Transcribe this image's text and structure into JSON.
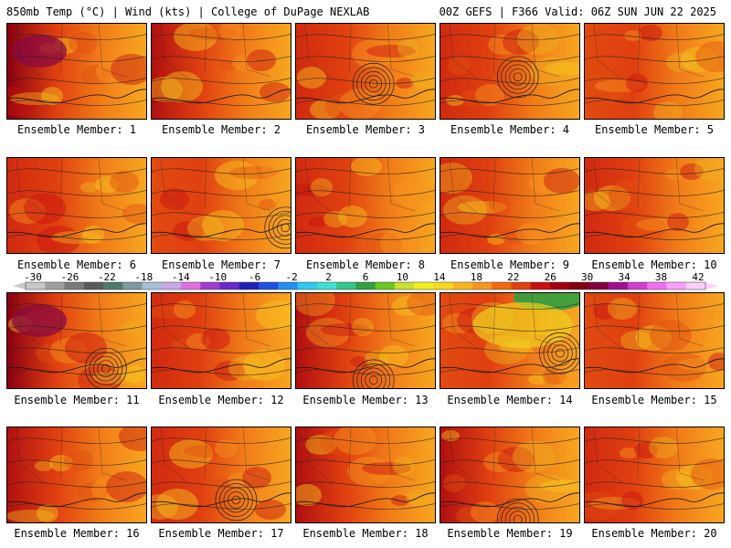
{
  "header": {
    "left_title": "850mb Temp (°C) | Wind (kts) | College of DuPage NEXLAB",
    "right_title": "00Z GEFS | F366 Valid: 06Z SUN JUN 22 2025"
  },
  "panels": [
    {
      "label": "Ensemble Member: 1",
      "hot": 0.85,
      "low": null
    },
    {
      "label": "Ensemble Member: 2",
      "hot": 0.7,
      "low": null
    },
    {
      "label": "Ensemble Member: 3",
      "hot": 0.55,
      "low": [
        0.55,
        0.62
      ]
    },
    {
      "label": "Ensemble Member: 4",
      "hot": 0.55,
      "low": [
        0.55,
        0.55
      ]
    },
    {
      "label": "Ensemble Member: 5",
      "hot": 0.45,
      "low": null
    },
    {
      "label": "Ensemble Member: 6",
      "hot": 0.55,
      "low": null
    },
    {
      "label": "Ensemble Member: 7",
      "hot": 0.45,
      "low": [
        0.95,
        0.72
      ]
    },
    {
      "label": "Ensemble Member: 8",
      "hot": 0.6,
      "low": null
    },
    {
      "label": "Ensemble Member: 9",
      "hot": 0.6,
      "low": null
    },
    {
      "label": "Ensemble Member: 10",
      "hot": 0.6,
      "low": null
    },
    {
      "label": "Ensemble Member: 11",
      "hot": 0.9,
      "low": [
        0.7,
        0.78
      ]
    },
    {
      "label": "Ensemble Member: 12",
      "hot": 0.55,
      "low": null
    },
    {
      "label": "Ensemble Member: 13",
      "hot": 0.75,
      "low": [
        0.55,
        0.9
      ]
    },
    {
      "label": "Ensemble Member: 14",
      "hot": 0.3,
      "low": [
        0.85,
        0.62
      ]
    },
    {
      "label": "Ensemble Member: 15",
      "hot": 0.4,
      "low": null
    },
    {
      "label": "Ensemble Member: 16",
      "hot": 0.65,
      "low": null
    },
    {
      "label": "Ensemble Member: 17",
      "hot": 0.6,
      "low": [
        0.6,
        0.75
      ]
    },
    {
      "label": "Ensemble Member: 18",
      "hot": 0.65,
      "low": null
    },
    {
      "label": "Ensemble Member: 19",
      "hot": 0.75,
      "low": [
        0.55,
        0.95
      ]
    },
    {
      "label": "Ensemble Member: 20",
      "hot": 0.55,
      "low": null
    }
  ],
  "colorbar": {
    "ticks": [
      "-30",
      "-26",
      "-22",
      "-18",
      "-14",
      "-10",
      "-6",
      "-2",
      "2",
      "6",
      "10",
      "14",
      "18",
      "22",
      "26",
      "30",
      "34",
      "38",
      "42"
    ],
    "colors": [
      "#c8c8c8",
      "#a0a0a0",
      "#7a7a7a",
      "#5a5a5a",
      "#4e7a6e",
      "#7c9aa0",
      "#a6bfd4",
      "#c8a8e6",
      "#e070e0",
      "#a03cd0",
      "#6a28c8",
      "#2020b8",
      "#2050e0",
      "#2090f0",
      "#30c8f0",
      "#40e0d0",
      "#30c890",
      "#30a040",
      "#66c820",
      "#c8e030",
      "#f0f020",
      "#f8d820",
      "#f8b420",
      "#f89420",
      "#f06a10",
      "#e04010",
      "#c81010",
      "#a00010",
      "#800010",
      "#800040",
      "#a01090",
      "#d040d0",
      "#f070f0",
      "#f8a0f8",
      "#f8d0f8"
    ]
  }
}
